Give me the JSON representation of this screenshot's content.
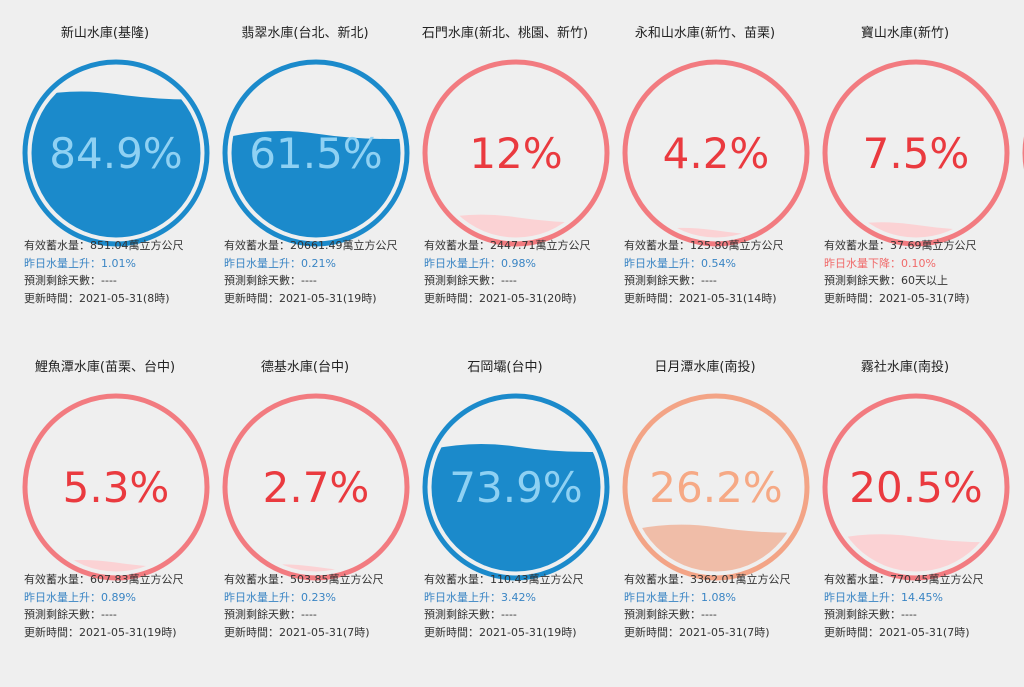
{
  "colors": {
    "blue_ring": "#1b8acb",
    "blue_fill": "#1b8acb",
    "blue_text": "#8fd1f3",
    "red_ring": "#f27b80",
    "red_text": "#ea3a3f",
    "red_fill": "#fbd2d4",
    "orange_ring": "#f3a486",
    "orange_text": "#f6a985",
    "orange_fill": "#f0bda8",
    "up_text": "#3a85c4",
    "down_text": "#f06a6a"
  },
  "labels": {
    "capacity": "有效蓄水量：",
    "up": "昨日水量上升：",
    "down": "昨日水量下降：",
    "days": "預測剩餘天數：",
    "updated": "更新時間："
  },
  "reservoirs": [
    {
      "name": "新山水庫(基隆)",
      "percent": "84.9%",
      "level": 0.849,
      "theme": "blue",
      "capacity": "851.04萬立方公尺",
      "change_dir": "up",
      "change": "1.01%",
      "days": "----",
      "updated": "2021-05-31(8時)"
    },
    {
      "name": "翡翠水庫(台北、新北)",
      "percent": "61.5%",
      "level": 0.615,
      "theme": "blue",
      "capacity": "20661.49萬立方公尺",
      "change_dir": "up",
      "change": "0.21%",
      "days": "----",
      "updated": "2021-05-31(19時)"
    },
    {
      "name": "石門水庫(新北、桃園、新竹)",
      "percent": "12%",
      "level": 0.12,
      "theme": "red",
      "capacity": "2447.71萬立方公尺",
      "change_dir": "up",
      "change": "0.98%",
      "days": "----",
      "updated": "2021-05-31(20時)"
    },
    {
      "name": "永和山水庫(新竹、苗栗)",
      "percent": "4.2%",
      "level": 0.042,
      "theme": "red",
      "capacity": "125.80萬立方公尺",
      "change_dir": "up",
      "change": "0.54%",
      "days": "----",
      "updated": "2021-05-31(14時)"
    },
    {
      "name": "寶山水庫(新竹)",
      "percent": "7.5%",
      "level": 0.075,
      "theme": "red",
      "capacity": "37.69萬立方公尺",
      "change_dir": "down",
      "change": "0.10%",
      "days": "60天以上",
      "updated": "2021-05-31(7時)"
    },
    {
      "name": "鯉魚潭水庫(苗栗、台中)",
      "percent": "5.3%",
      "level": 0.053,
      "theme": "red",
      "capacity": "607.83萬立方公尺",
      "change_dir": "up",
      "change": "0.89%",
      "days": "----",
      "updated": "2021-05-31(19時)"
    },
    {
      "name": "德基水庫(台中)",
      "percent": "2.7%",
      "level": 0.027,
      "theme": "red",
      "capacity": "503.85萬立方公尺",
      "change_dir": "up",
      "change": "0.23%",
      "days": "----",
      "updated": "2021-05-31(7時)"
    },
    {
      "name": "石岡壩(台中)",
      "percent": "73.9%",
      "level": 0.739,
      "theme": "blue",
      "capacity": "110.43萬立方公尺",
      "change_dir": "up",
      "change": "3.42%",
      "days": "----",
      "updated": "2021-05-31(19時)"
    },
    {
      "name": "日月潭水庫(南投)",
      "percent": "26.2%",
      "level": 0.262,
      "theme": "orange",
      "capacity": "3362.01萬立方公尺",
      "change_dir": "up",
      "change": "1.08%",
      "days": "----",
      "updated": "2021-05-31(7時)"
    },
    {
      "name": "霧社水庫(南投)",
      "percent": "20.5%",
      "level": 0.205,
      "theme": "red",
      "capacity": "770.45萬立方公尺",
      "change_dir": "up",
      "change": "14.45%",
      "days": "----",
      "updated": "2021-05-31(7時)"
    },
    {
      "name": "",
      "percent": "",
      "level": 0,
      "theme": "red",
      "capacity": "",
      "change_dir": "up",
      "change": "",
      "days": "",
      "updated": ""
    }
  ]
}
